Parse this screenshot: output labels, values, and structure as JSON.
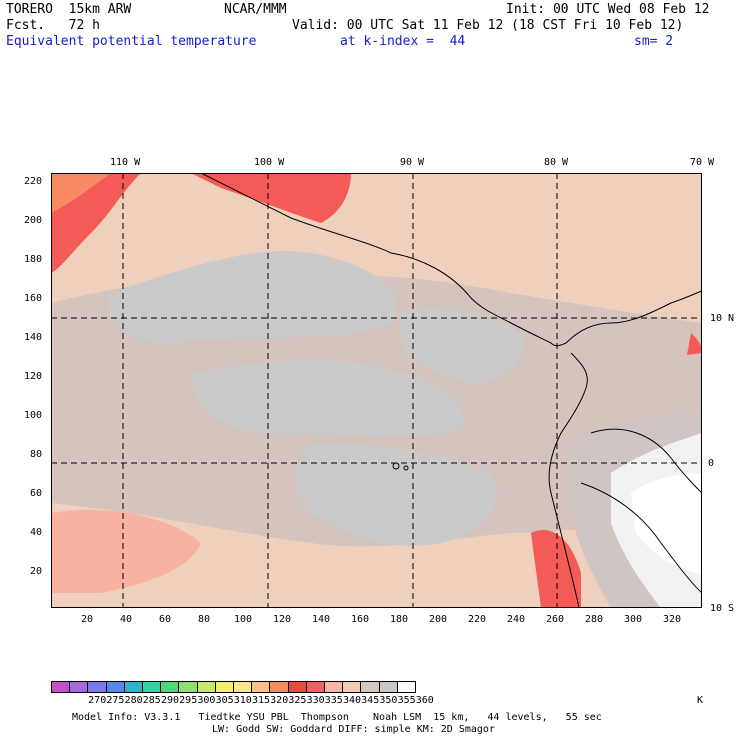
{
  "header": {
    "model": "TORERO  15km ARW",
    "center": "NCAR/MMM",
    "init": "Init: 00 UTC Wed 08 Feb 12",
    "fcst": "Fcst.   72 h",
    "valid": "Valid: 00 UTC Sat 11 Feb 12 (18 CST Fri 10 Feb 12)",
    "field": "Equivalent potential temperature",
    "level": "at k-index =  44",
    "smooth": "sm= 2"
  },
  "top_ticks": [
    "110 W",
    "100 W",
    "90 W",
    "80 W",
    "70 W"
  ],
  "right_ticks": [
    "10 N",
    "0",
    "10 S"
  ],
  "y_ticks": [
    "220",
    "200",
    "180",
    "160",
    "140",
    "120",
    "100",
    "80",
    "60",
    "40",
    "20"
  ],
  "x_ticks": [
    "20",
    "40",
    "60",
    "80",
    "100",
    "120",
    "140",
    "160",
    "180",
    "200",
    "220",
    "240",
    "260",
    "280",
    "300",
    "320"
  ],
  "colorbar": {
    "labels": [
      "270",
      "275",
      "280",
      "285",
      "290",
      "295",
      "300",
      "305",
      "310",
      "315",
      "320",
      "325",
      "330",
      "335",
      "340",
      "345",
      "350",
      "355",
      "360"
    ],
    "unit": "K",
    "colors": [
      "#c84fc8",
      "#a36ad9",
      "#7d78ee",
      "#5a86ec",
      "#2fb4c9",
      "#2fd7a6",
      "#4fd87a",
      "#8ee070",
      "#c8e86a",
      "#f4ee6a",
      "#fde58d",
      "#fcc086",
      "#f88c5c",
      "#f04a3c",
      "#f46060",
      "#f9b4a3",
      "#f2ceb4",
      "#d6c8c0",
      "#c8c8c8",
      "#ffffff"
    ]
  },
  "footer": {
    "line1": "Model Info: V3.3.1   Tiedtke YSU PBL  Thompson    Noah LSM  15 km,   44 levels,   55 sec",
    "line2": "LW: Godd SW: Goddard DIFF: simple KM: 2D Smagor"
  },
  "map_colors": {
    "ocean_base": "#efd0bd",
    "grey_band": "#cfc4c2",
    "light_grey": "#cacaca",
    "salmon": "#f9b1a0",
    "red": "#f45a56",
    "orange": "#f88a64",
    "white": "#ffffff",
    "coast": "#000000"
  }
}
